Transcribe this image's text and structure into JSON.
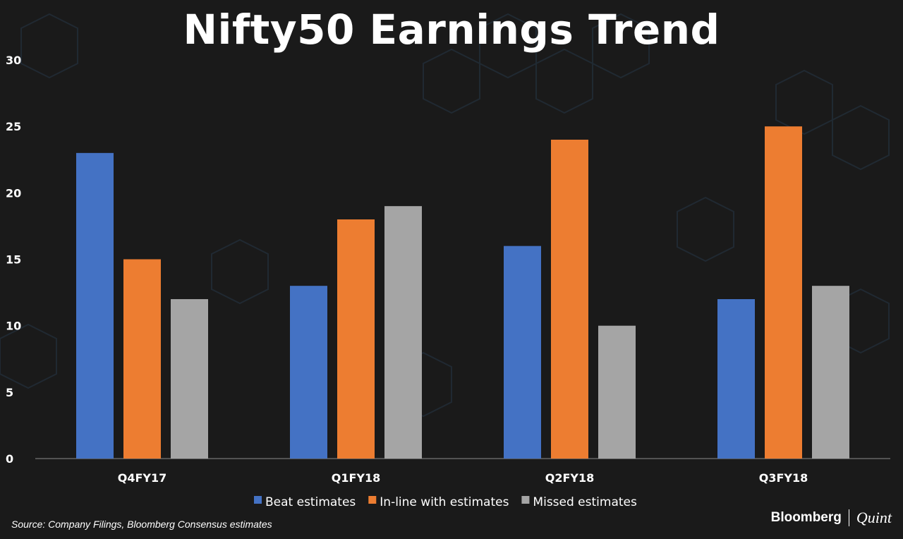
{
  "chart_data": {
    "type": "bar",
    "title": "Nifty50 Earnings Trend",
    "xlabel": "",
    "ylabel": "",
    "ylim": [
      0,
      30
    ],
    "yticks": [
      0,
      5,
      10,
      15,
      20,
      25,
      30
    ],
    "grid": false,
    "legend_position": "bottom",
    "categories": [
      "Q4FY17",
      "Q1FY18",
      "Q2FY18",
      "Q3FY18"
    ],
    "series": [
      {
        "name": "Beat estimates",
        "color": "#4472c4",
        "values": [
          23,
          13,
          16,
          12
        ]
      },
      {
        "name": "In-line with estimates",
        "color": "#ed7d31",
        "values": [
          15,
          18,
          24,
          25
        ]
      },
      {
        "name": "Missed estimates",
        "color": "#a5a5a5",
        "values": [
          12,
          19,
          10,
          13
        ]
      }
    ]
  },
  "footer": {
    "source": "Source: Company Filings, Bloomberg Consensus estimates",
    "brand_primary": "Bloomberg",
    "brand_secondary": "Quint"
  }
}
